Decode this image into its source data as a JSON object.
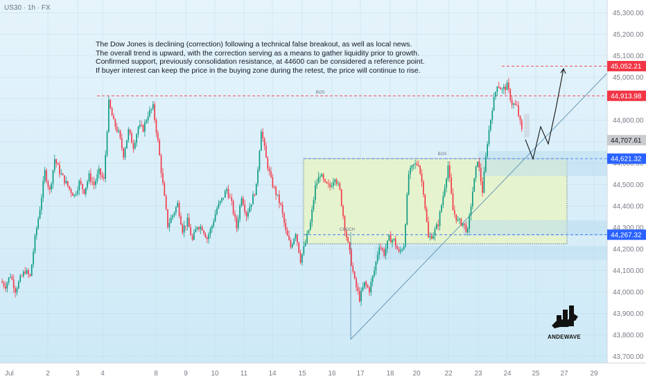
{
  "header": {
    "symbol": "US30 · 1h · FX"
  },
  "note": {
    "lines": [
      "The Dow Jones is declining (correction) following a technical false breakout, as well as local news.",
      "The overall trend is upward, with the correction serving as a means to gather liquidity prior to growth.",
      "Confirmed support, previously consolidation resistance, at 44600 can be considered a reference point.",
      "If buyer interest can keep the price in the buying zone during the retest, the price will continue to rise."
    ]
  },
  "logo": {
    "text": "ANDEWAVE"
  },
  "chart_data": {
    "type": "candlestick",
    "y_ticks": [
      "43,700.00",
      "43,800.00",
      "43,900.00",
      "44,000.00",
      "44,100.00",
      "44,200.00",
      "44,300.00",
      "44,400.00",
      "44,500.00",
      "44,600.00",
      "44,700.00",
      "44,800.00",
      "44,900.00",
      "45,000.00",
      "45,100.00",
      "45,200.00",
      "45,300.00"
    ],
    "x_ticks": [
      "Jul",
      "2",
      "3",
      "4",
      "8",
      "9",
      "10",
      "11",
      "14",
      "15",
      "16",
      "17",
      "18",
      "20",
      "22",
      "23",
      "24",
      "25",
      "27",
      "29"
    ],
    "ylim": [
      43670,
      45360
    ],
    "grid": true,
    "levels": [
      {
        "name": "high",
        "value": 45052.21,
        "label": "45,052.21",
        "color": "#f23645"
      },
      {
        "name": "bos-high",
        "value": 44913.98,
        "label": "44,913.98",
        "color": "#f23645"
      },
      {
        "name": "current",
        "value": 44707.61,
        "label": "44,707.61",
        "color": "#c9cbcf"
      },
      {
        "name": "support",
        "value": 44621.32,
        "label": "44,621.32",
        "color": "#2962ff"
      },
      {
        "name": "zone-low",
        "value": 44267.32,
        "label": "44,267.32",
        "color": "#2962ff"
      }
    ],
    "tags": [
      "BOS",
      "BOS",
      "CHOCH"
    ],
    "buy_zone": {
      "top": 44621.32,
      "bottom": 44225
    },
    "trendline": {
      "from": 43780,
      "to": 45020
    },
    "projection": [
      44710,
      44620,
      44770,
      44690,
      44855,
      45040
    ],
    "price_path": [
      44050,
      44030,
      44080,
      44010,
      44060,
      44100,
      44070,
      44250,
      44390,
      44560,
      44470,
      44620,
      44560,
      44520,
      44480,
      44450,
      44510,
      44470,
      44540,
      44500,
      44560,
      44520,
      44880,
      44790,
      44740,
      44640,
      44750,
      44680,
      44770,
      44760,
      44830,
      44860,
      44700,
      44500,
      44310,
      44360,
      44410,
      44290,
      44330,
      44240,
      44310,
      44300,
      44250,
      44310,
      44390,
      44430,
      44480,
      44410,
      44300,
      44450,
      44360,
      44420,
      44490,
      44760,
      44620,
      44520,
      44460,
      44400,
      44280,
      44210,
      44280,
      44150,
      44230,
      44320,
      44490,
      44550,
      44500,
      44490,
      44540,
      44470,
      44300,
      44180,
      44050,
      43970,
      44040,
      44010,
      44100,
      44220,
      44180,
      44250,
      44240,
      44180,
      44220,
      44550,
      44590,
      44600,
      44470,
      44250,
      44270,
      44320,
      44450,
      44590,
      44380,
      44330,
      44320,
      44280,
      44470,
      44620,
      44470,
      44700,
      44860,
      44970,
      44940,
      44960,
      44880,
      44860,
      44750
    ]
  }
}
